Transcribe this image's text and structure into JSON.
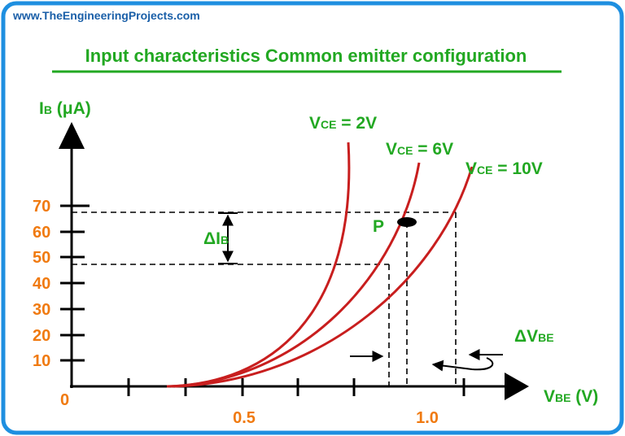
{
  "watermark": "www.TheEngineeringProjects.com",
  "title": "Input characteristics Common emitter configuration",
  "y_axis": {
    "label": {
      "symbol": "I",
      "subscript": "B",
      "unit": " (μA)"
    },
    "ticks": [
      "70",
      "60",
      "50",
      "40",
      "30",
      "20",
      "10"
    ],
    "origin": "0"
  },
  "x_axis": {
    "label": {
      "symbol": "V",
      "subscript": "BE",
      "unit": " (V)"
    },
    "ticks": [
      "0.5",
      "1.0"
    ]
  },
  "curves": [
    {
      "symbol": "V",
      "subscript": "CE",
      "value": " = 2V"
    },
    {
      "symbol": "V",
      "subscript": "CE",
      "value": " = 6V"
    },
    {
      "symbol": "V",
      "subscript": "CE",
      "value": " = 10V"
    }
  ],
  "point": "P",
  "annotations": {
    "delta_ib": {
      "symbol": "ΔI",
      "subscript": "B"
    },
    "delta_vbe": {
      "symbol": "ΔV",
      "subscript": "BE"
    }
  }
}
